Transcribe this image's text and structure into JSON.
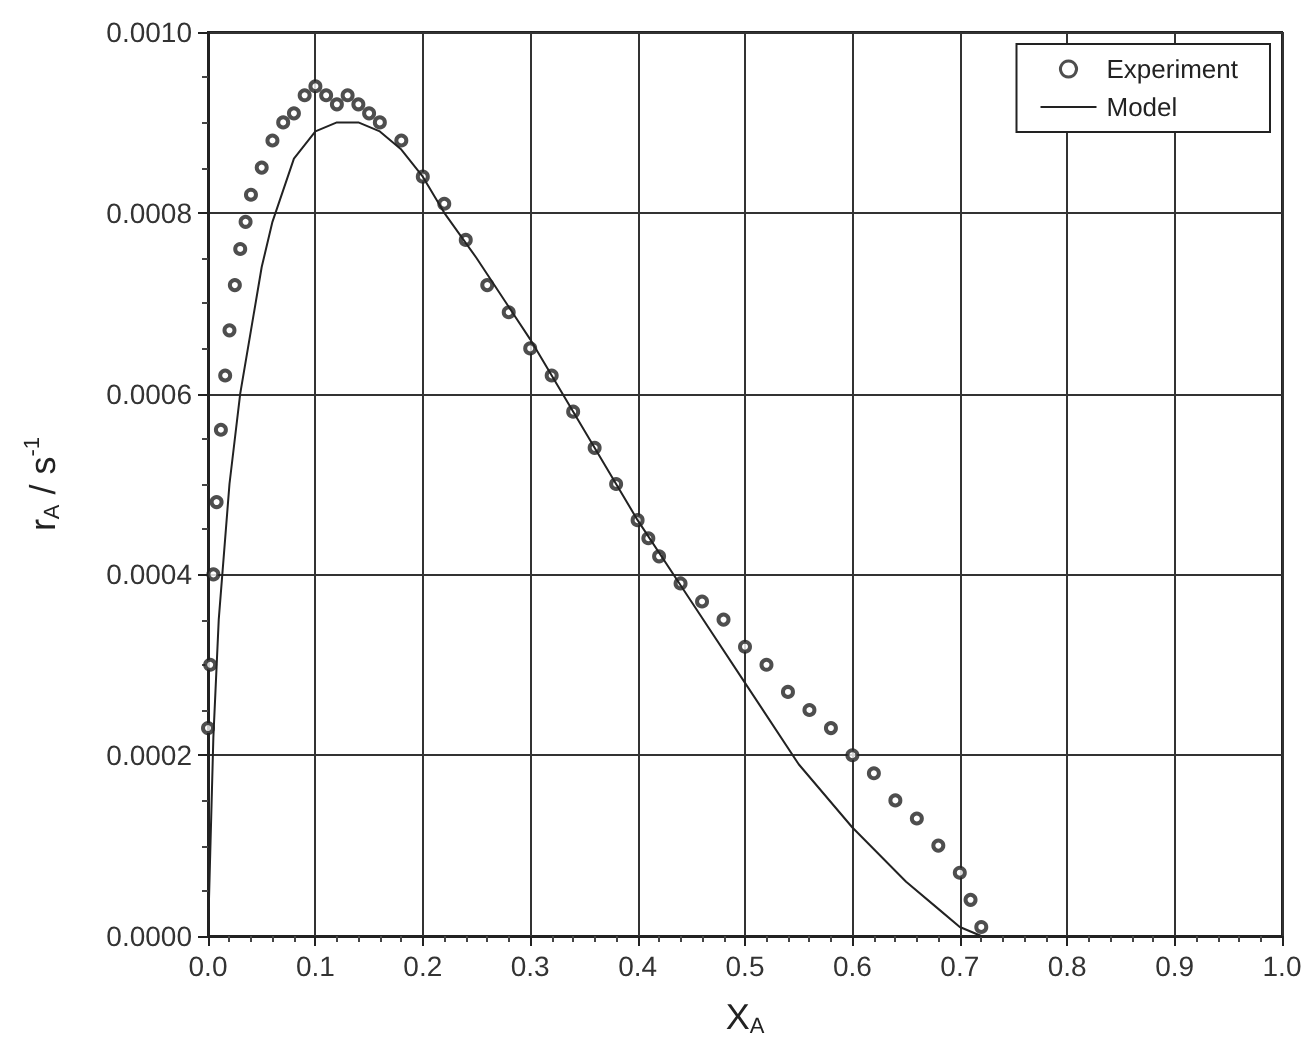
{
  "chart_data": {
    "type": "scatter",
    "xlabel": "X$_{A}$",
    "ylabel": "r$_{A}$ / s$^{-1}$",
    "xlim": [
      0,
      1
    ],
    "xticks": [
      {
        "value": 0,
        "label": "0.0"
      },
      {
        "value": 0.1,
        "label": "0.1"
      },
      {
        "value": 0.2,
        "label": "0.2"
      },
      {
        "value": 0.3,
        "label": "0.3"
      },
      {
        "value": 0.4,
        "label": "0.4"
      },
      {
        "value": 0.5,
        "label": "0.5"
      },
      {
        "value": 0.6,
        "label": "0.6"
      },
      {
        "value": 0.7,
        "label": "0.7"
      },
      {
        "value": 0.8,
        "label": "0.8"
      },
      {
        "value": 0.9,
        "label": "0.9"
      },
      {
        "value": 1,
        "label": "1.0"
      }
    ],
    "ylim": [
      0,
      0.001
    ],
    "yticks": [
      {
        "value": 0,
        "label": "0.0000"
      },
      {
        "value": 0.0002,
        "label": "0.0002"
      },
      {
        "value": 0.0004,
        "label": "0.0004"
      },
      {
        "value": 0.0006,
        "label": "0.0006"
      },
      {
        "value": 0.0008,
        "label": "0.0008"
      },
      {
        "value": 0.001,
        "label": "0.0010"
      }
    ],
    "grid": true,
    "legend": "top right",
    "series": [
      {
        "name": "Experiment",
        "marker": "circle",
        "color": "#222222",
        "x": [
          0.0,
          0.002,
          0.005,
          0.008,
          0.012,
          0.016,
          0.02,
          0.025,
          0.03,
          0.035,
          0.04,
          0.05,
          0.06,
          0.07,
          0.08,
          0.09,
          0.1,
          0.11,
          0.12,
          0.13,
          0.14,
          0.15,
          0.16,
          0.18,
          0.2,
          0.22,
          0.24,
          0.26,
          0.28,
          0.3,
          0.32,
          0.34,
          0.36,
          0.38,
          0.4,
          0.41,
          0.42,
          0.44,
          0.46,
          0.48,
          0.5,
          0.52,
          0.54,
          0.56,
          0.58,
          0.6,
          0.62,
          0.64,
          0.66,
          0.68,
          0.7,
          0.71,
          0.72
        ],
        "values": [
          0.00023,
          0.0003,
          0.0004,
          0.00048,
          0.00056,
          0.00062,
          0.00067,
          0.00072,
          0.00076,
          0.00079,
          0.00082,
          0.00085,
          0.00088,
          0.0009,
          0.00091,
          0.00093,
          0.00094,
          0.00093,
          0.00092,
          0.00093,
          0.00092,
          0.00091,
          0.0009,
          0.00088,
          0.00084,
          0.00081,
          0.00077,
          0.00072,
          0.00069,
          0.00065,
          0.00062,
          0.00058,
          0.00054,
          0.0005,
          0.00046,
          0.00044,
          0.00042,
          0.00039,
          0.00037,
          0.00035,
          0.00032,
          0.0003,
          0.00027,
          0.00025,
          0.00023,
          0.0002,
          0.00018,
          0.00015,
          0.00013,
          0.0001,
          7e-05,
          4e-05,
          1e-05
        ]
      },
      {
        "name": "Model",
        "type": "line",
        "marker": "none",
        "line_style": "solid",
        "color": "#222222",
        "x": [
          0.0,
          0.005,
          0.01,
          0.02,
          0.03,
          0.04,
          0.05,
          0.06,
          0.08,
          0.1,
          0.12,
          0.14,
          0.16,
          0.18,
          0.2,
          0.22,
          0.25,
          0.3,
          0.35,
          0.4,
          0.45,
          0.5,
          0.55,
          0.6,
          0.65,
          0.68,
          0.7,
          0.72
        ],
        "values": [
          0.0,
          0.00022,
          0.00035,
          0.0005,
          0.0006,
          0.00067,
          0.00074,
          0.00079,
          0.00086,
          0.00089,
          0.0009,
          0.0009,
          0.00089,
          0.00087,
          0.00084,
          0.0008,
          0.00075,
          0.00066,
          0.00056,
          0.00046,
          0.00037,
          0.00028,
          0.00019,
          0.00012,
          6e-05,
          3e-05,
          1e-05,
          0.0
        ]
      }
    ]
  }
}
